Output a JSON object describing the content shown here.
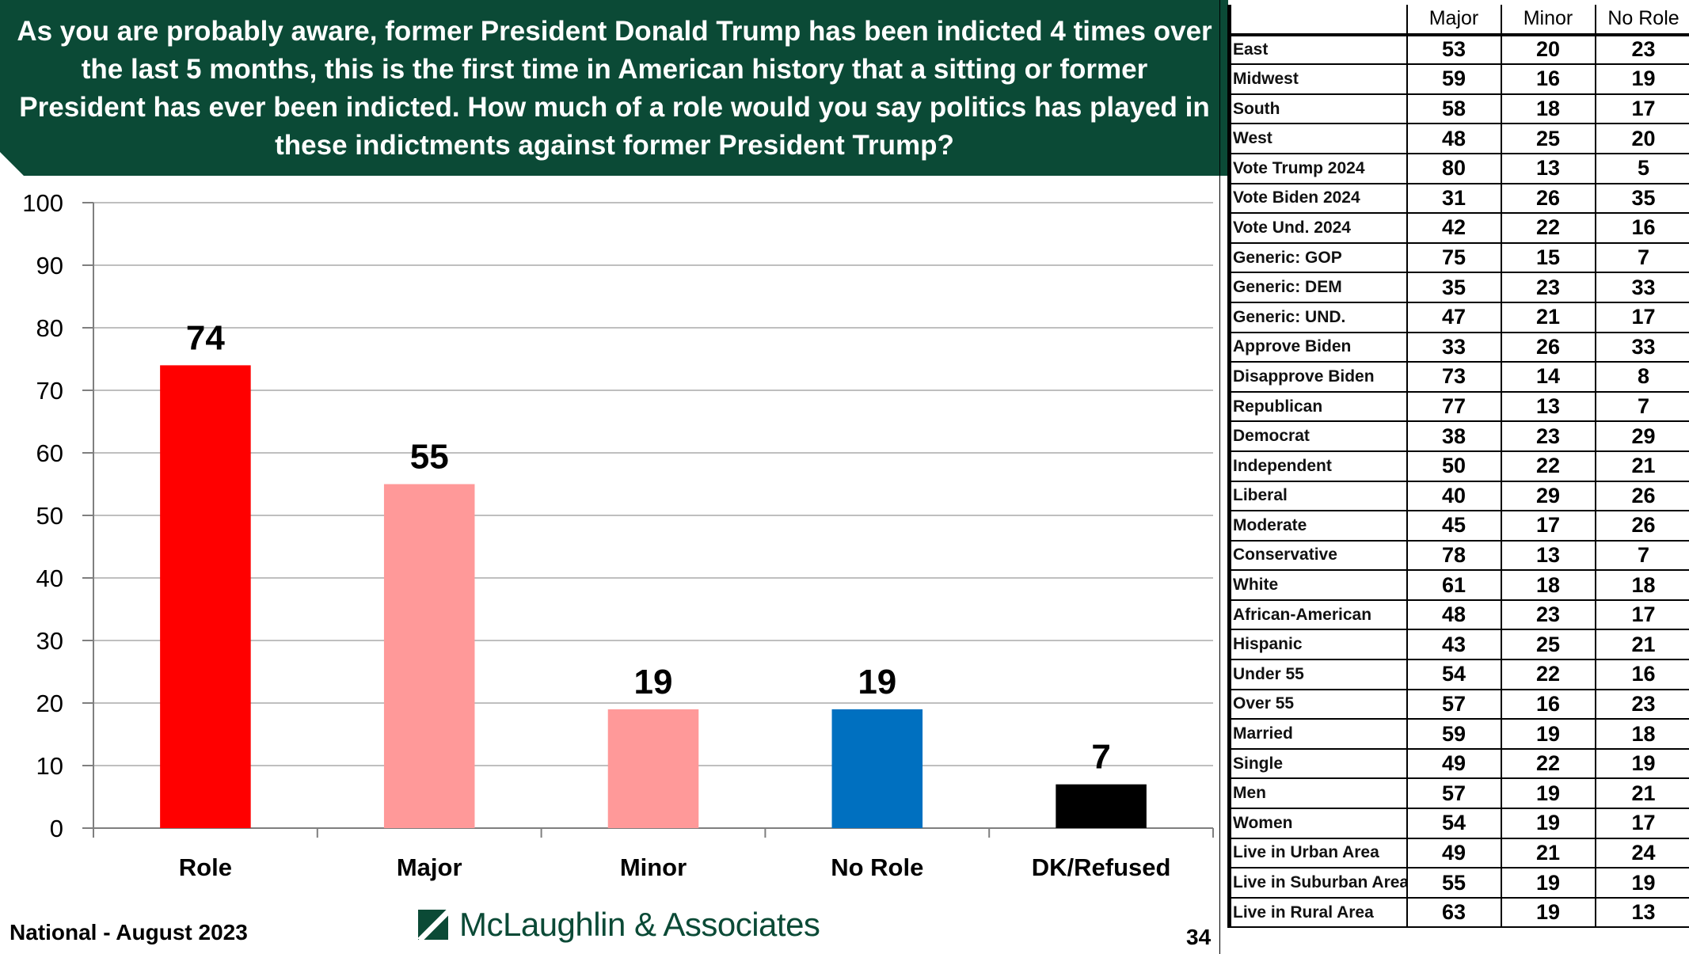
{
  "question": "As you are probably aware, former President Donald Trump has been indicted 4 times over the last 5 months, this is the first time in American history that a sitting or former President has ever been indicted.  How much of a role would you say politics has played in these indictments against former President Trump?",
  "footer": {
    "survey": "National - August 2023",
    "company": "McLaughlin & Associates",
    "page": "34"
  },
  "colors": {
    "banner": "#0b4a36",
    "role": "#ff0000",
    "major": "#ff9999",
    "minor": "#ff9999",
    "no_role": "#0070c0",
    "dk": "#000000"
  },
  "chart_data": {
    "type": "bar",
    "categories": [
      "Role",
      "Major",
      "Minor",
      "No Role",
      "DK/Refused"
    ],
    "values": [
      74,
      55,
      19,
      19,
      7
    ],
    "bar_colors": [
      "#ff0000",
      "#ff9999",
      "#ff9999",
      "#0070c0",
      "#000000"
    ],
    "ylim": [
      0,
      100
    ],
    "yticks": [
      0,
      10,
      20,
      30,
      40,
      50,
      60,
      70,
      80,
      90,
      100
    ],
    "grid": true,
    "data_labels": true
  },
  "table": {
    "headers": [
      "",
      "Major",
      "Minor",
      "No Role"
    ],
    "rows": [
      {
        "label": "East",
        "major": "53",
        "minor": "20",
        "no_role": "23"
      },
      {
        "label": "Midwest",
        "major": "59",
        "minor": "16",
        "no_role": "19"
      },
      {
        "label": "South",
        "major": "58",
        "minor": "18",
        "no_role": "17"
      },
      {
        "label": "West",
        "major": "48",
        "minor": "25",
        "no_role": "20"
      },
      {
        "label": "Vote Trump 2024",
        "major": "80",
        "minor": "13",
        "no_role": "5"
      },
      {
        "label": "Vote Biden 2024",
        "major": "31",
        "minor": "26",
        "no_role": "35"
      },
      {
        "label": "Vote Und. 2024",
        "major": "42",
        "minor": "22",
        "no_role": "16"
      },
      {
        "label": "Generic: GOP",
        "major": "75",
        "minor": "15",
        "no_role": "7"
      },
      {
        "label": "Generic: DEM",
        "major": "35",
        "minor": "23",
        "no_role": "33"
      },
      {
        "label": "Generic: UND.",
        "major": "47",
        "minor": "21",
        "no_role": "17"
      },
      {
        "label": "Approve Biden",
        "major": "33",
        "minor": "26",
        "no_role": "33"
      },
      {
        "label": "Disapprove Biden",
        "major": "73",
        "minor": "14",
        "no_role": "8"
      },
      {
        "label": "Republican",
        "major": "77",
        "minor": "13",
        "no_role": "7"
      },
      {
        "label": "Democrat",
        "major": "38",
        "minor": "23",
        "no_role": "29"
      },
      {
        "label": "Independent",
        "major": "50",
        "minor": "22",
        "no_role": "21"
      },
      {
        "label": "Liberal",
        "major": "40",
        "minor": "29",
        "no_role": "26"
      },
      {
        "label": "Moderate",
        "major": "45",
        "minor": "17",
        "no_role": "26"
      },
      {
        "label": "Conservative",
        "major": "78",
        "minor": "13",
        "no_role": "7"
      },
      {
        "label": "White",
        "major": "61",
        "minor": "18",
        "no_role": "18"
      },
      {
        "label": "African-American",
        "major": "48",
        "minor": "23",
        "no_role": "17"
      },
      {
        "label": "Hispanic",
        "major": "43",
        "minor": "25",
        "no_role": "21"
      },
      {
        "label": "Under 55",
        "major": "54",
        "minor": "22",
        "no_role": "16"
      },
      {
        "label": "Over 55",
        "major": "57",
        "minor": "16",
        "no_role": "23"
      },
      {
        "label": "Married",
        "major": "59",
        "minor": "19",
        "no_role": "18"
      },
      {
        "label": "Single",
        "major": "49",
        "minor": "22",
        "no_role": "19"
      },
      {
        "label": "Men",
        "major": "57",
        "minor": "19",
        "no_role": "21"
      },
      {
        "label": "Women",
        "major": "54",
        "minor": "19",
        "no_role": "17"
      },
      {
        "label": "Live in Urban Area",
        "major": "49",
        "minor": "21",
        "no_role": "24"
      },
      {
        "label": "Live in Suburban Area",
        "major": "55",
        "minor": "19",
        "no_role": "19"
      },
      {
        "label": "Live in Rural Area",
        "major": "63",
        "minor": "19",
        "no_role": "13"
      }
    ]
  }
}
